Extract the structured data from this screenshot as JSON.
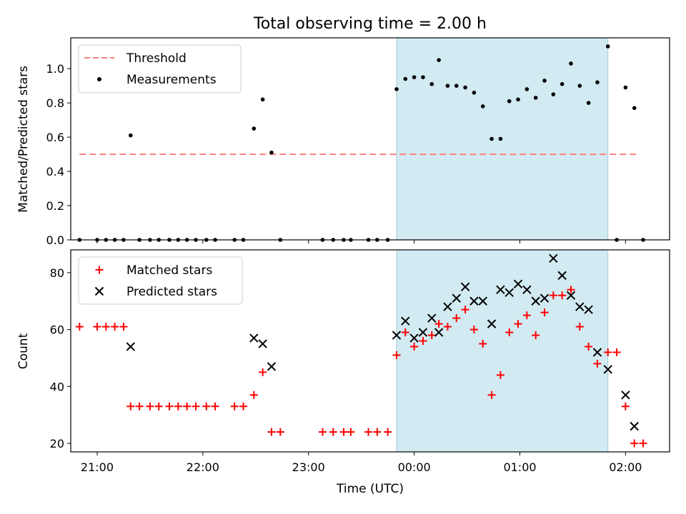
{
  "chart_data": [
    {
      "type": "scatter",
      "title": "Total observing time = 2.00 h",
      "ylabel": "Matched/Predicted stars",
      "xlim": [
        "20:45",
        "02:25"
      ],
      "ylim": [
        0,
        1.18
      ],
      "yticks": [
        "0.0",
        "0.2",
        "0.4",
        "0.6",
        "0.8",
        "1.0"
      ],
      "shaded_region": [
        "23:50",
        "01:50"
      ],
      "legend_position": "top-left",
      "threshold": {
        "name": "Threshold",
        "y": 0.5,
        "x_start": "20:50",
        "x_end": "02:08",
        "color": "#ff7f7f",
        "style": "dashed"
      },
      "series": [
        {
          "name": "Measurements",
          "color": "#000000",
          "marker": "dot",
          "points": [
            [
              "20:50",
              0
            ],
            [
              "21:00",
              0
            ],
            [
              "21:05",
              0
            ],
            [
              "21:10",
              0
            ],
            [
              "21:15",
              0
            ],
            [
              "21:19",
              0.61
            ],
            [
              "21:24",
              0
            ],
            [
              "21:30",
              0
            ],
            [
              "21:35",
              0
            ],
            [
              "21:41",
              0
            ],
            [
              "21:46",
              0
            ],
            [
              "21:51",
              0
            ],
            [
              "21:56",
              0
            ],
            [
              "22:02",
              0
            ],
            [
              "22:07",
              0
            ],
            [
              "22:18",
              0
            ],
            [
              "22:23",
              0
            ],
            [
              "22:29",
              0.65
            ],
            [
              "22:34",
              0.82
            ],
            [
              "22:39",
              0.51
            ],
            [
              "22:44",
              0
            ],
            [
              "23:08",
              0
            ],
            [
              "23:14",
              0
            ],
            [
              "23:20",
              0
            ],
            [
              "23:24",
              0
            ],
            [
              "23:34",
              0
            ],
            [
              "23:39",
              0
            ],
            [
              "23:45",
              0
            ],
            [
              "23:50",
              0.88
            ],
            [
              "23:55",
              0.94
            ],
            [
              "00:00",
              0.95
            ],
            [
              "00:05",
              0.95
            ],
            [
              "00:10",
              0.91
            ],
            [
              "00:14",
              1.05
            ],
            [
              "00:19",
              0.9
            ],
            [
              "00:24",
              0.9
            ],
            [
              "00:29",
              0.89
            ],
            [
              "00:34",
              0.86
            ],
            [
              "00:39",
              0.78
            ],
            [
              "00:44",
              0.59
            ],
            [
              "00:49",
              0.59
            ],
            [
              "00:54",
              0.81
            ],
            [
              "00:59",
              0.82
            ],
            [
              "01:04",
              0.88
            ],
            [
              "01:09",
              0.83
            ],
            [
              "01:14",
              0.93
            ],
            [
              "01:19",
              0.85
            ],
            [
              "01:24",
              0.91
            ],
            [
              "01:29",
              1.03
            ],
            [
              "01:34",
              0.9
            ],
            [
              "01:39",
              0.8
            ],
            [
              "01:44",
              0.92
            ],
            [
              "01:50",
              1.13
            ],
            [
              "01:55",
              0
            ],
            [
              "02:00",
              0.89
            ],
            [
              "02:05",
              0.77
            ],
            [
              "02:10",
              0
            ]
          ]
        }
      ]
    },
    {
      "type": "scatter",
      "xlabel": "Time (UTC)",
      "ylabel": "Count",
      "xlim": [
        "20:45",
        "02:25"
      ],
      "xticks": [
        "21:00",
        "22:00",
        "23:00",
        "00:00",
        "01:00",
        "02:00"
      ],
      "ylim": [
        17,
        88
      ],
      "yticks": [
        "20",
        "40",
        "60",
        "80"
      ],
      "shaded_region": [
        "23:50",
        "01:50"
      ],
      "legend_position": "top-left",
      "series": [
        {
          "name": "Matched stars",
          "color": "#ff0000",
          "marker": "plus",
          "points": [
            [
              "20:50",
              61
            ],
            [
              "21:00",
              61
            ],
            [
              "21:05",
              61
            ],
            [
              "21:10",
              61
            ],
            [
              "21:15",
              61
            ],
            [
              "21:19",
              33
            ],
            [
              "21:24",
              33
            ],
            [
              "21:30",
              33
            ],
            [
              "21:35",
              33
            ],
            [
              "21:41",
              33
            ],
            [
              "21:46",
              33
            ],
            [
              "21:51",
              33
            ],
            [
              "21:56",
              33
            ],
            [
              "22:02",
              33
            ],
            [
              "22:07",
              33
            ],
            [
              "22:18",
              33
            ],
            [
              "22:23",
              33
            ],
            [
              "22:29",
              37
            ],
            [
              "22:34",
              45
            ],
            [
              "22:39",
              24
            ],
            [
              "22:44",
              24
            ],
            [
              "23:08",
              24
            ],
            [
              "23:14",
              24
            ],
            [
              "23:20",
              24
            ],
            [
              "23:24",
              24
            ],
            [
              "23:34",
              24
            ],
            [
              "23:39",
              24
            ],
            [
              "23:45",
              24
            ],
            [
              "23:50",
              51
            ],
            [
              "23:55",
              59
            ],
            [
              "00:00",
              54
            ],
            [
              "00:05",
              56
            ],
            [
              "00:10",
              58
            ],
            [
              "00:14",
              62
            ],
            [
              "00:19",
              61
            ],
            [
              "00:24",
              64
            ],
            [
              "00:29",
              67
            ],
            [
              "00:34",
              60
            ],
            [
              "00:39",
              55
            ],
            [
              "00:44",
              37
            ],
            [
              "00:49",
              44
            ],
            [
              "00:54",
              59
            ],
            [
              "00:59",
              62
            ],
            [
              "01:04",
              65
            ],
            [
              "01:09",
              58
            ],
            [
              "01:14",
              66
            ],
            [
              "01:19",
              72
            ],
            [
              "01:24",
              72
            ],
            [
              "01:29",
              74
            ],
            [
              "01:34",
              61
            ],
            [
              "01:39",
              54
            ],
            [
              "01:44",
              48
            ],
            [
              "01:50",
              52
            ],
            [
              "01:55",
              52
            ],
            [
              "02:00",
              33
            ],
            [
              "02:05",
              20
            ],
            [
              "02:10",
              20
            ]
          ]
        },
        {
          "name": "Predicted stars",
          "color": "#000000",
          "marker": "x",
          "points": [
            [
              "21:19",
              54
            ],
            [
              "22:29",
              57
            ],
            [
              "22:34",
              55
            ],
            [
              "22:39",
              47
            ],
            [
              "23:50",
              58
            ],
            [
              "23:55",
              63
            ],
            [
              "00:00",
              57
            ],
            [
              "00:05",
              59
            ],
            [
              "00:10",
              64
            ],
            [
              "00:14",
              59
            ],
            [
              "00:19",
              68
            ],
            [
              "00:24",
              71
            ],
            [
              "00:29",
              75
            ],
            [
              "00:34",
              70
            ],
            [
              "00:39",
              70
            ],
            [
              "00:44",
              62
            ],
            [
              "00:49",
              74
            ],
            [
              "00:54",
              73
            ],
            [
              "00:59",
              76
            ],
            [
              "01:04",
              74
            ],
            [
              "01:09",
              70
            ],
            [
              "01:14",
              71
            ],
            [
              "01:19",
              85
            ],
            [
              "01:24",
              79
            ],
            [
              "01:29",
              72
            ],
            [
              "01:34",
              68
            ],
            [
              "01:39",
              67
            ],
            [
              "01:44",
              52
            ],
            [
              "01:50",
              46
            ],
            [
              "02:00",
              37
            ],
            [
              "02:05",
              26
            ]
          ]
        }
      ]
    }
  ]
}
